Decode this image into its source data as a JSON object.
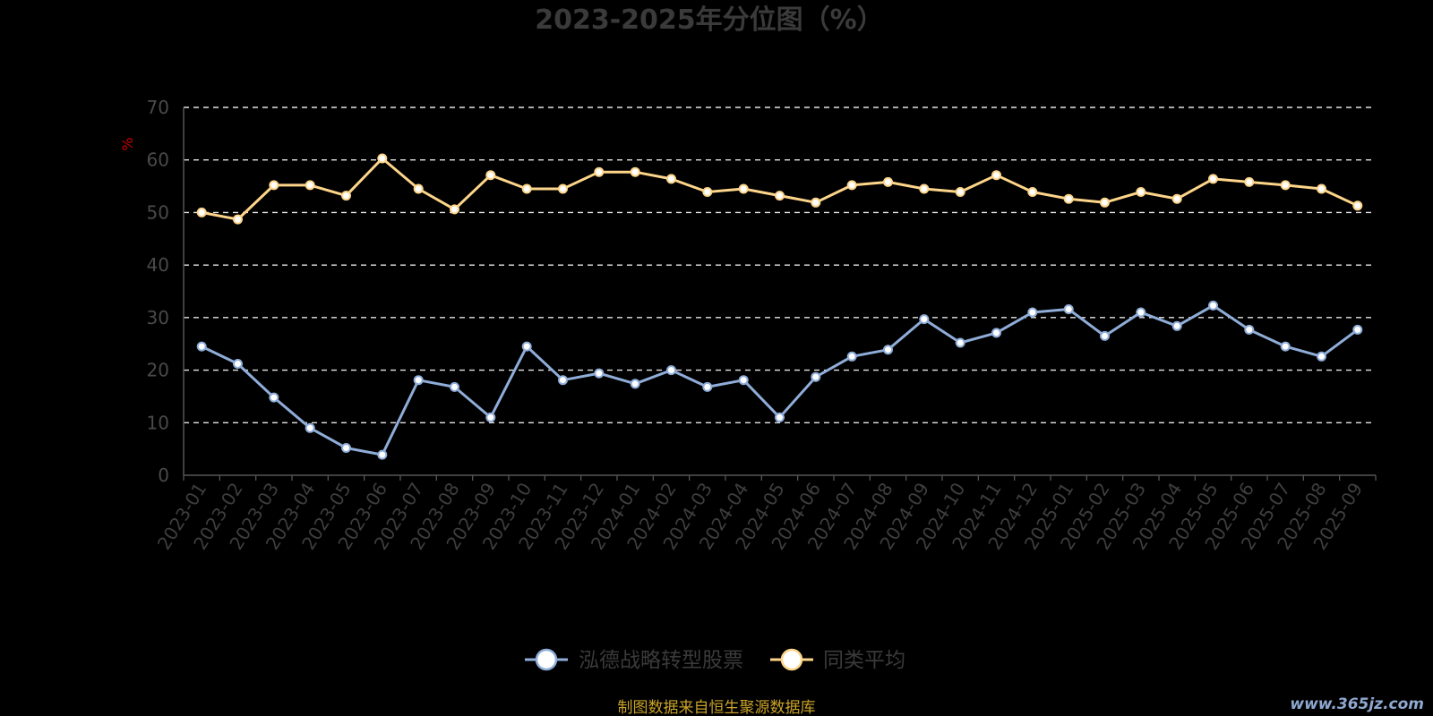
{
  "chart_data": {
    "type": "line",
    "title": "2023-2025年分位图（%）",
    "ylabel": "%",
    "xlabel": "",
    "ylim": [
      0,
      70
    ],
    "y_ticks": [
      0,
      10,
      20,
      30,
      40,
      50,
      60,
      70
    ],
    "grid": "horizontal-dashed",
    "legend_position": "bottom-center",
    "categories": [
      "2023-01",
      "2023-02",
      "2023-03",
      "2023-04",
      "2023-05",
      "2023-06",
      "2023-07",
      "2023-08",
      "2023-09",
      "2023-10",
      "2023-11",
      "2023-12",
      "2024-01",
      "2024-02",
      "2024-03",
      "2024-04",
      "2024-05",
      "2024-06",
      "2024-07",
      "2024-08",
      "2024-09",
      "2024-10",
      "2024-11",
      "2024-12",
      "2025-01",
      "2025-02",
      "2025-03",
      "2025-04",
      "2025-05",
      "2025-06",
      "2025-07",
      "2025-08",
      "2025-09"
    ],
    "series": [
      {
        "name": "泓德战略转型股票",
        "color": "#8fadd8",
        "values": [
          24.5,
          21.2,
          14.8,
          9.0,
          5.2,
          3.9,
          18.1,
          16.8,
          11.0,
          24.5,
          18.1,
          19.4,
          17.4,
          20.0,
          16.8,
          18.1,
          11.0,
          18.7,
          22.6,
          23.9,
          29.7,
          25.2,
          27.1,
          31.0,
          31.6,
          26.5,
          31.0,
          28.4,
          32.3,
          27.7,
          24.5,
          22.6,
          27.7
        ]
      },
      {
        "name": "同类平均",
        "color": "#fdd58a",
        "values": [
          50.0,
          48.7,
          55.2,
          55.2,
          53.2,
          60.3,
          54.5,
          50.6,
          57.1,
          54.5,
          54.5,
          57.7,
          57.7,
          56.4,
          53.9,
          54.5,
          53.2,
          51.9,
          55.2,
          55.8,
          54.5,
          53.9,
          57.1,
          53.9,
          52.6,
          51.9,
          53.9,
          52.6,
          56.4,
          55.8,
          55.2,
          54.5,
          51.3
        ]
      }
    ]
  },
  "footer": {
    "source": "制图数据来自恒生聚源数据库",
    "watermark": "www.365jz.com"
  }
}
